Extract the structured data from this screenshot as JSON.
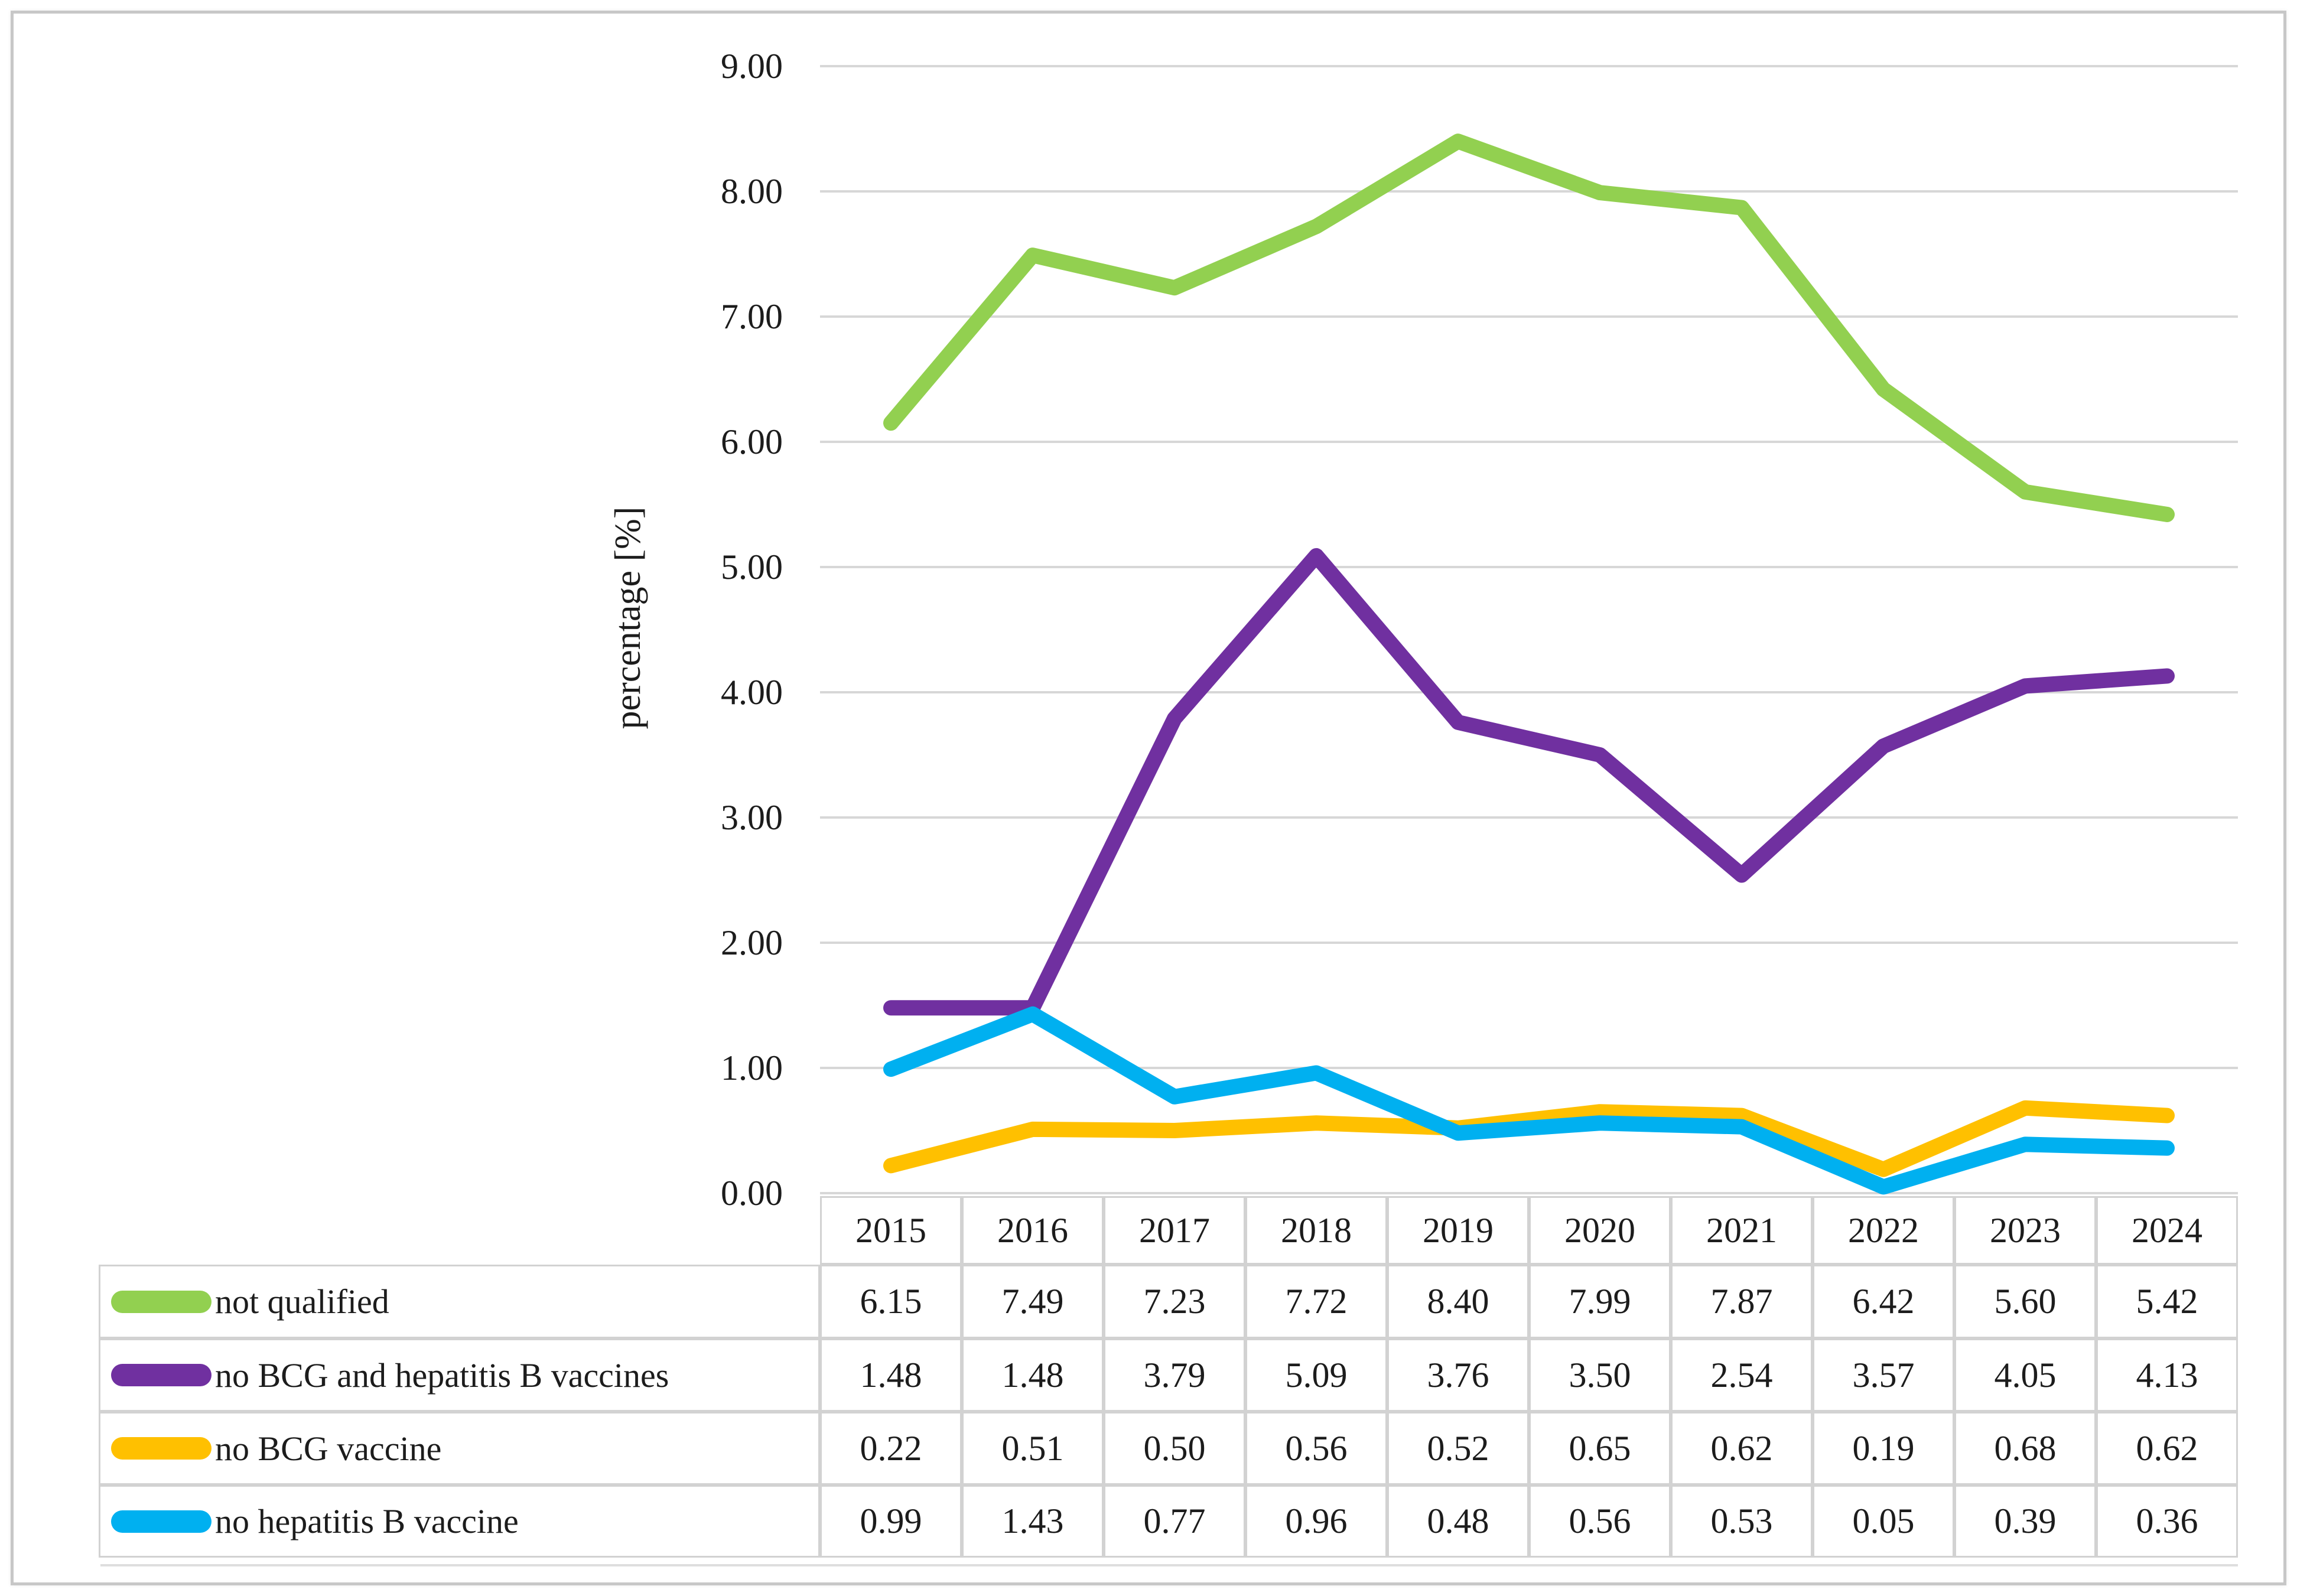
{
  "chart_data": {
    "type": "line",
    "title": "",
    "xlabel": "",
    "ylabel": "percentage [%]",
    "ylim": [
      0,
      9
    ],
    "y_ticks": [
      "0.00",
      "1.00",
      "2.00",
      "3.00",
      "4.00",
      "5.00",
      "6.00",
      "7.00",
      "8.00",
      "9.00"
    ],
    "grid": "horizontal",
    "gridline_color": "#d7d7d7",
    "legend_position": "table-left-column",
    "x_axis_rendered_as": "data-table",
    "categories": [
      "2015",
      "2016",
      "2017",
      "2018",
      "2019",
      "2020",
      "2021",
      "2022",
      "2023",
      "2024"
    ],
    "series": [
      {
        "name": "not qualified",
        "color": "#92D050",
        "values": [
          6.15,
          7.49,
          7.23,
          7.72,
          8.4,
          7.99,
          7.87,
          6.42,
          5.6,
          5.42
        ]
      },
      {
        "name": "no BCG and hepatitis B vaccines",
        "color": "#7030A0",
        "values": [
          1.48,
          1.48,
          3.79,
          5.09,
          3.76,
          3.5,
          2.54,
          3.57,
          4.05,
          4.13
        ]
      },
      {
        "name": "no BCG vaccine",
        "color": "#FFC000",
        "values": [
          0.22,
          0.51,
          0.5,
          0.56,
          0.52,
          0.65,
          0.62,
          0.19,
          0.68,
          0.62
        ]
      },
      {
        "name": "no hepatitis B vaccine",
        "color": "#00B0F0",
        "values": [
          0.99,
          1.43,
          0.77,
          0.96,
          0.48,
          0.56,
          0.53,
          0.05,
          0.39,
          0.36
        ]
      }
    ],
    "value_format_decimals": 2
  }
}
